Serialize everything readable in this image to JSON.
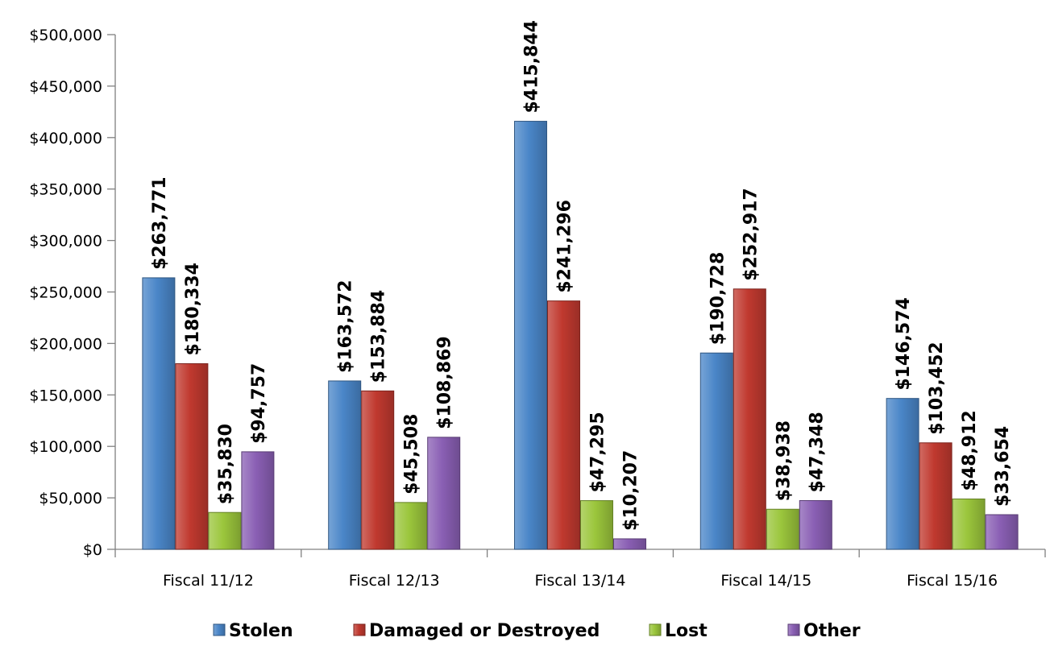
{
  "chart_data": {
    "type": "bar",
    "title": "",
    "xlabel": "",
    "ylabel": "",
    "categories": [
      "Fiscal 11/12",
      "Fiscal 12/13",
      "Fiscal 13/14",
      "Fiscal 14/15",
      "Fiscal 15/16"
    ],
    "series": [
      {
        "name": "Stolen",
        "color": "#4a86c8",
        "values": [
          263771,
          163572,
          415844,
          190728,
          146574
        ],
        "labels": [
          "$263,771",
          "$163,572",
          "$415,844",
          "$190,728",
          "$146,574"
        ]
      },
      {
        "name": "Damaged or Destroyed",
        "color": "#c0392f",
        "values": [
          180334,
          153884,
          241296,
          252917,
          103452
        ],
        "labels": [
          "$180,334",
          "$153,884",
          "$241,296",
          "$252,917",
          "$103,452"
        ]
      },
      {
        "name": "Lost",
        "color": "#9bc63c",
        "values": [
          35830,
          45508,
          47295,
          38938,
          48912
        ],
        "labels": [
          "$35,830",
          "$45,508",
          "$47,295",
          "$38,938",
          "$48,912"
        ]
      },
      {
        "name": "Other",
        "color": "#8a5fb4",
        "values": [
          94757,
          108869,
          10207,
          47348,
          33654
        ],
        "labels": [
          "$94,757",
          "$108,869",
          "$10,207",
          "$47,348",
          "$33,654"
        ]
      }
    ],
    "ylim": [
      0,
      500000
    ],
    "yticks": [
      0,
      50000,
      100000,
      150000,
      200000,
      250000,
      300000,
      350000,
      400000,
      450000,
      500000
    ],
    "ytick_labels": [
      "$0",
      "$50,000",
      "$100,000",
      "$150,000",
      "$200,000",
      "$250,000",
      "$300,000",
      "$350,000",
      "$400,000",
      "$450,000",
      "$500,000"
    ],
    "grid": false,
    "legend": {
      "position": "bottom"
    }
  }
}
